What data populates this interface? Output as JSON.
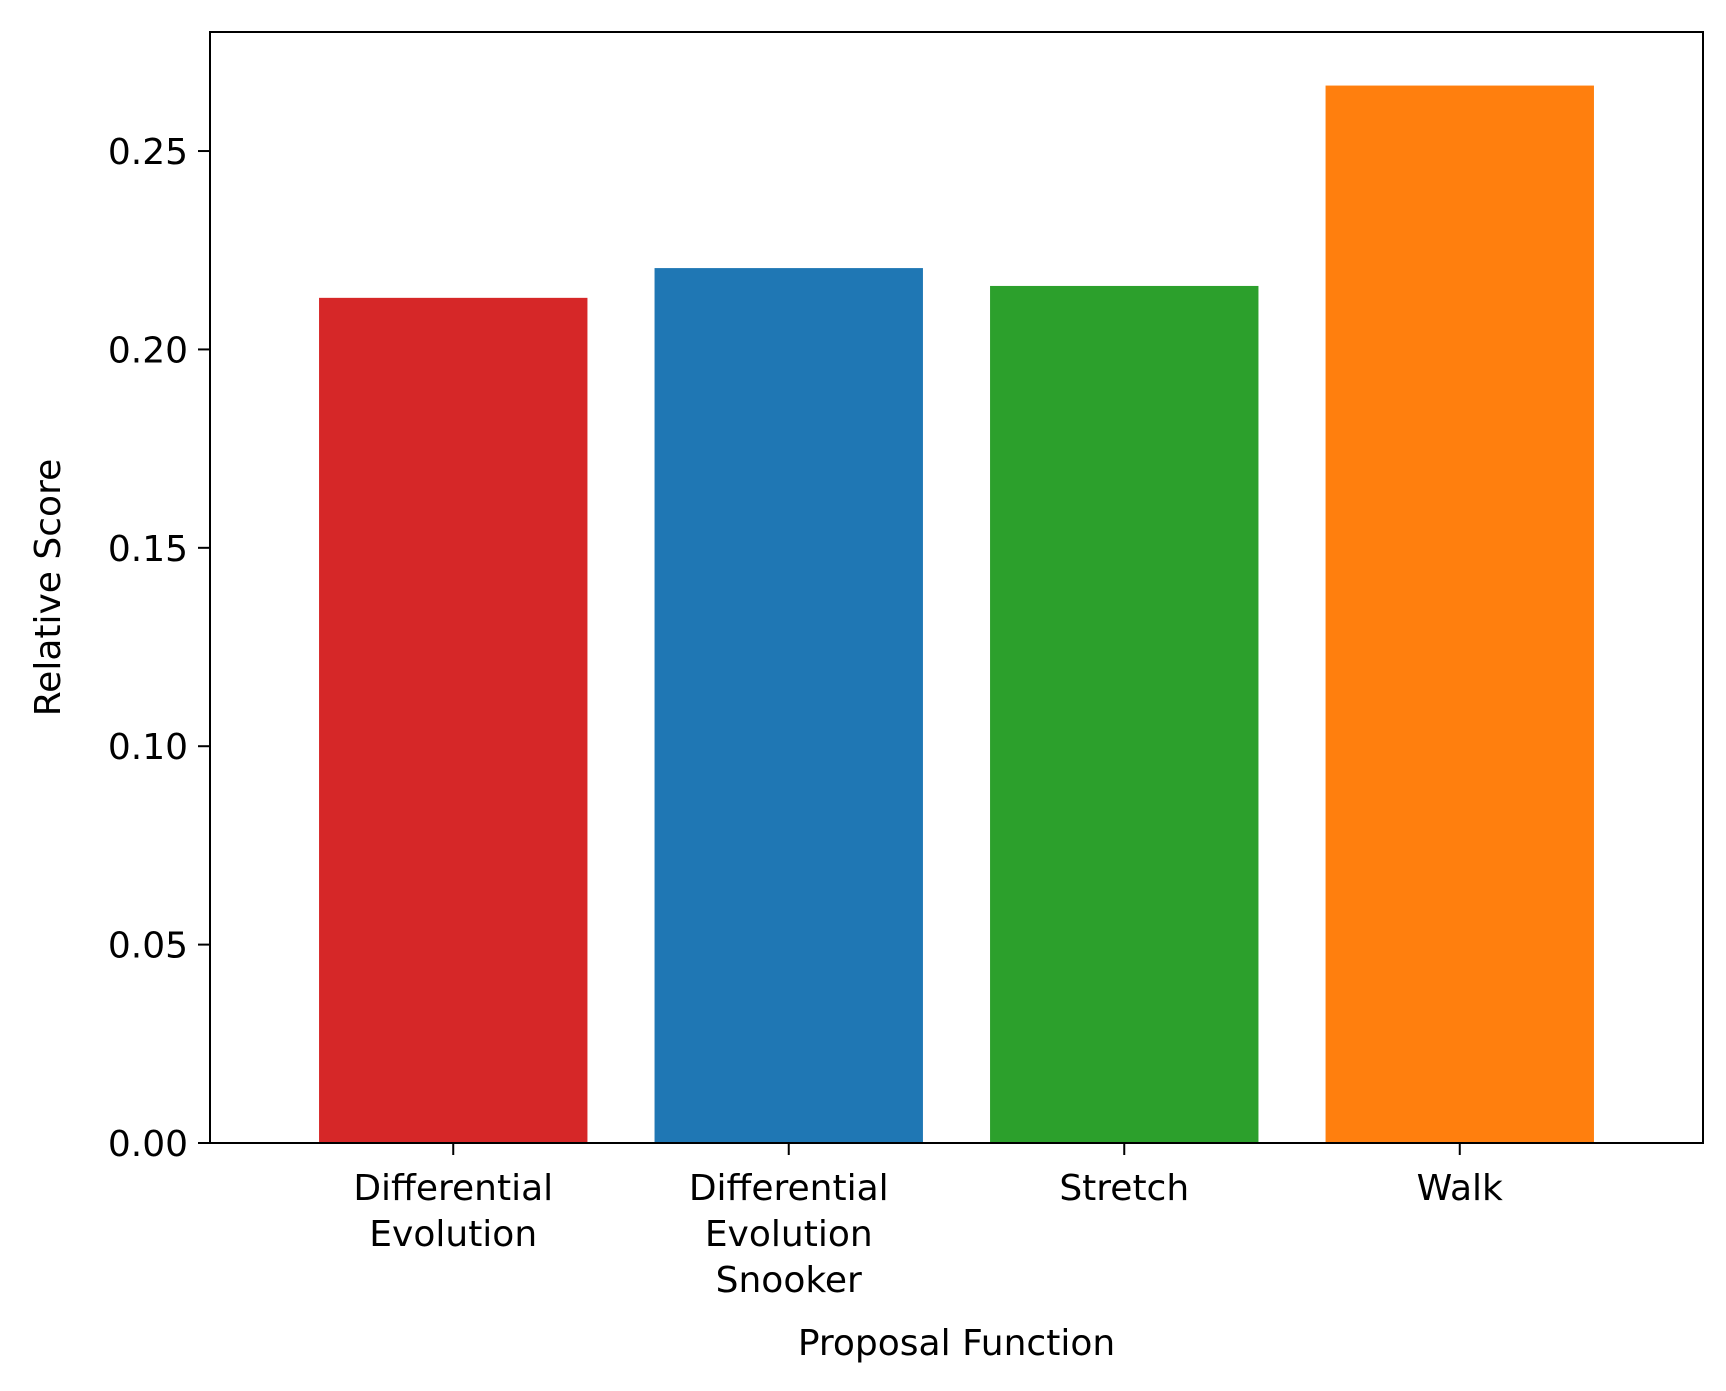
{
  "chart_data": {
    "type": "bar",
    "title": "",
    "xlabel": "Proposal Function",
    "ylabel": "Relative Score",
    "categories": [
      [
        "Differential",
        "Evolution"
      ],
      [
        "Differential",
        "Evolution",
        "Snooker"
      ],
      [
        "Stretch"
      ],
      [
        "Walk"
      ]
    ],
    "values": [
      0.213,
      0.2205,
      0.216,
      0.2665
    ],
    "colors": [
      "#d62728",
      "#1f77b4",
      "#2ca02c",
      "#ff7f0e"
    ],
    "ylim": [
      0,
      0.28
    ],
    "yticks": [
      "0.00",
      "0.05",
      "0.10",
      "0.15",
      "0.20",
      "0.25"
    ],
    "grid": false,
    "legend": "none"
  }
}
